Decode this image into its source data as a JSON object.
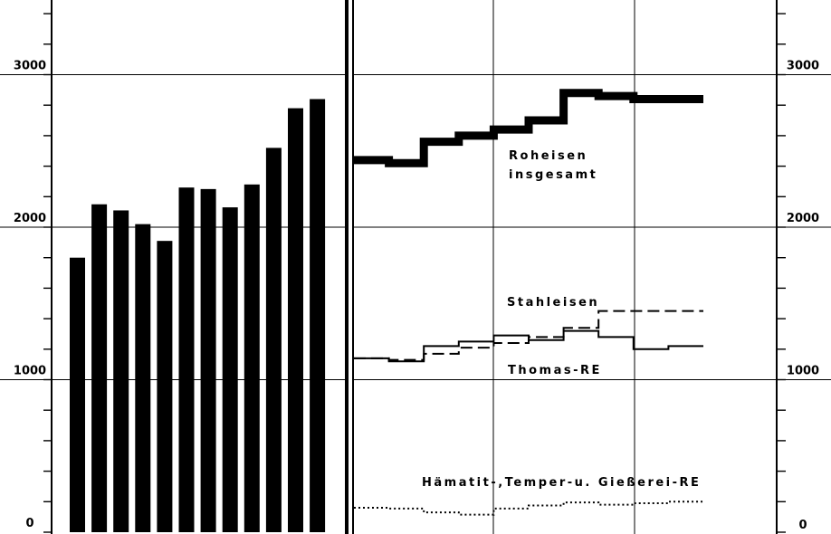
{
  "chart_data": [
    {
      "type": "bar",
      "ylim": [
        0,
        3400
      ],
      "yticks": [
        0,
        1000,
        2000,
        3000
      ],
      "tick_labels": [
        "0",
        "1000",
        "2000",
        "3000"
      ],
      "grid": true,
      "bar_color": "#000000",
      "values": [
        1800,
        2150,
        2110,
        2020,
        1910,
        2260,
        2250,
        2130,
        2280,
        2520,
        2780,
        2840
      ]
    },
    {
      "type": "line",
      "ylim": [
        0,
        3400
      ],
      "yticks": [
        0,
        1000,
        2000,
        3000
      ],
      "tick_labels": [
        "0",
        "1000",
        "2000",
        "3000"
      ],
      "grid": true,
      "series": [
        {
          "label_lines": [
            "Roheisen",
            "insgesamt"
          ],
          "style": "thick",
          "values": [
            2440,
            2420,
            2560,
            2600,
            2640,
            2700,
            2880,
            2860,
            2840,
            2840
          ]
        },
        {
          "label_lines": [
            "Stahleisen"
          ],
          "style": "dashed",
          "values": [
            1140,
            1130,
            1170,
            1210,
            1240,
            1280,
            1340,
            1450,
            1450,
            1450
          ]
        },
        {
          "label_lines": [
            "Thomas-RE"
          ],
          "style": "solid",
          "values": [
            1140,
            1120,
            1220,
            1250,
            1290,
            1260,
            1320,
            1280,
            1200,
            1220
          ]
        },
        {
          "label_lines": [
            "Hämatit-,Temper-u. Gießerei-RE"
          ],
          "style": "dotted",
          "values": [
            160,
            155,
            130,
            115,
            155,
            175,
            195,
            180,
            190,
            200
          ]
        }
      ]
    }
  ]
}
